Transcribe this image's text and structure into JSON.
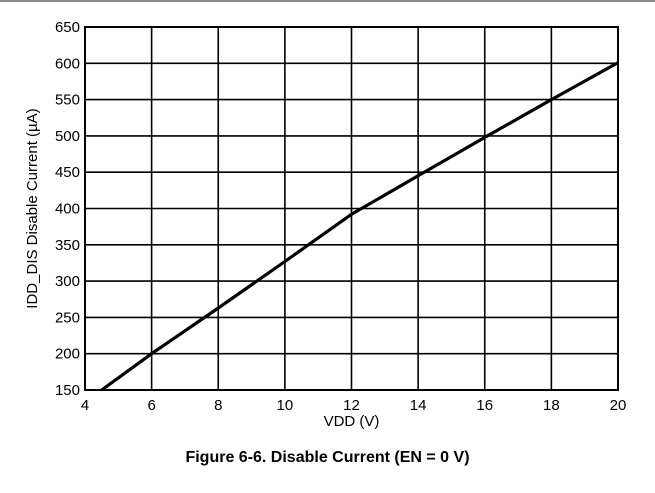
{
  "figure": {
    "caption": "Figure 6-6. Disable Current (EN = 0 V)"
  },
  "chart_data": {
    "type": "line",
    "xlabel": "VDD (V)",
    "ylabel": "IDD_DIS Disable Current (µA)",
    "xlim": [
      4,
      20
    ],
    "ylim": [
      150,
      650
    ],
    "xticks": [
      4,
      6,
      8,
      10,
      12,
      14,
      16,
      18,
      20
    ],
    "yticks": [
      150,
      200,
      250,
      300,
      350,
      400,
      450,
      500,
      550,
      600,
      650
    ],
    "grid": true,
    "series": [
      {
        "x": [
          4.5,
          6,
          8,
          10,
          12,
          14,
          16,
          18,
          20
        ],
        "values": [
          150,
          200,
          263,
          327,
          392,
          445,
          498,
          550,
          601
        ]
      }
    ],
    "line_color": "#000000"
  }
}
